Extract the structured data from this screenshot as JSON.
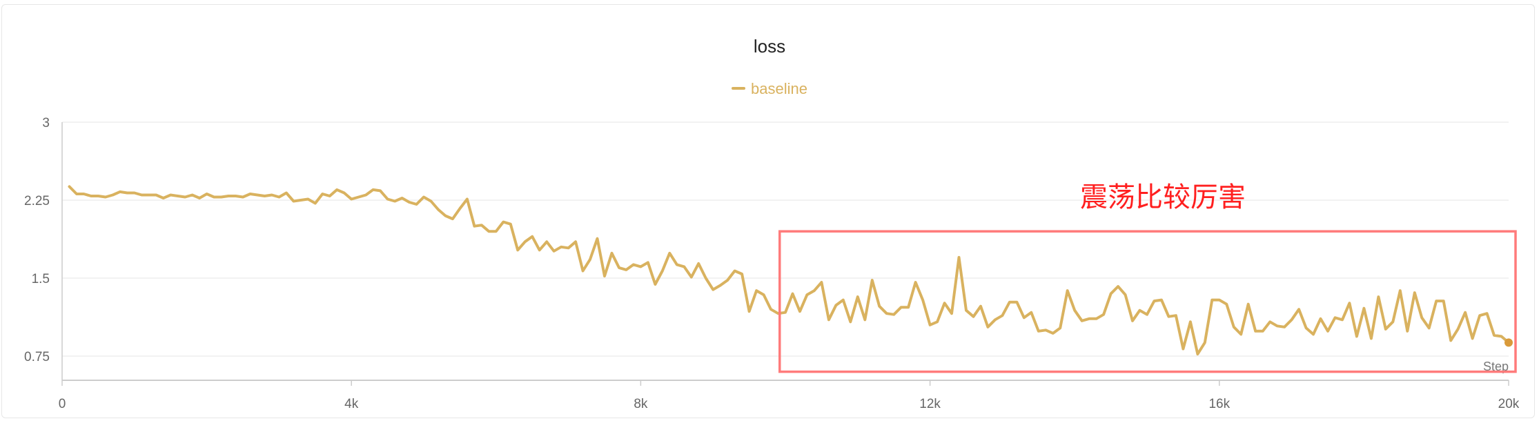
{
  "chart_data": {
    "type": "line",
    "title": "loss",
    "xlabel": "Step",
    "ylabel": "",
    "xlim": [
      0,
      20000
    ],
    "ylim": [
      0.75,
      3
    ],
    "x_ticks": [
      0,
      4000,
      8000,
      12000,
      16000,
      20000
    ],
    "x_tick_labels": [
      "0",
      "4k",
      "8k",
      "12k",
      "16k",
      "20k"
    ],
    "y_ticks": [
      0.75,
      1.5,
      2.25,
      3
    ],
    "y_tick_labels": [
      "0.75",
      "1.5",
      "2.25",
      "3"
    ],
    "grid": true,
    "legend_position": "top-center",
    "series": [
      {
        "name": "baseline",
        "color": "#d9b25f",
        "x": [
          100,
          200,
          300,
          400,
          500,
          600,
          700,
          800,
          900,
          1000,
          1100,
          1200,
          1300,
          1400,
          1500,
          1600,
          1700,
          1800,
          1900,
          2000,
          2100,
          2200,
          2300,
          2400,
          2500,
          2600,
          2700,
          2800,
          2900,
          3000,
          3100,
          3200,
          3300,
          3400,
          3500,
          3600,
          3700,
          3800,
          3900,
          4000,
          4100,
          4200,
          4300,
          4400,
          4500,
          4600,
          4700,
          4800,
          4900,
          5000,
          5100,
          5200,
          5300,
          5400,
          5500,
          5600,
          5700,
          5800,
          5900,
          6000,
          6100,
          6200,
          6300,
          6400,
          6500,
          6600,
          6700,
          6800,
          6900,
          7000,
          7100,
          7200,
          7300,
          7400,
          7500,
          7600,
          7700,
          7800,
          7900,
          8000,
          8100,
          8200,
          8300,
          8400,
          8500,
          8600,
          8700,
          8800,
          8900,
          9000,
          9100,
          9200,
          9300,
          9400,
          9500,
          9600,
          9700,
          9800,
          9900,
          10000,
          10100,
          10200,
          10300,
          10400,
          10500,
          10600,
          10700,
          10800,
          10900,
          11000,
          11100,
          11200,
          11300,
          11400,
          11500,
          11600,
          11700,
          11800,
          11900,
          12000,
          12100,
          12200,
          12300,
          12400,
          12500,
          12600,
          12700,
          12800,
          12900,
          13000,
          13100,
          13200,
          13300,
          13400,
          13500,
          13600,
          13700,
          13800,
          13900,
          14000,
          14100,
          14200,
          14300,
          14400,
          14500,
          14600,
          14700,
          14800,
          14900,
          15000,
          15100,
          15200,
          15300,
          15400,
          15500,
          15600,
          15700,
          15800,
          15900,
          16000,
          16100,
          16200,
          16300,
          16400,
          16500,
          16600,
          16700,
          16800,
          16900,
          17000,
          17100,
          17200,
          17300,
          17400,
          17500,
          17600,
          17700,
          17800,
          17900,
          18000,
          18100,
          18200,
          18300,
          18400,
          18500,
          18600,
          18700,
          18800,
          18900,
          19000,
          19100,
          19200,
          19300,
          19400,
          19500,
          19600,
          19700,
          19800,
          19900,
          20000
        ],
        "values": [
          2.38,
          2.31,
          2.31,
          2.29,
          2.29,
          2.28,
          2.3,
          2.33,
          2.32,
          2.32,
          2.3,
          2.3,
          2.3,
          2.27,
          2.3,
          2.29,
          2.28,
          2.3,
          2.27,
          2.31,
          2.28,
          2.28,
          2.29,
          2.29,
          2.28,
          2.31,
          2.3,
          2.29,
          2.3,
          2.28,
          2.32,
          2.24,
          2.25,
          2.26,
          2.22,
          2.31,
          2.29,
          2.35,
          2.32,
          2.26,
          2.28,
          2.3,
          2.35,
          2.34,
          2.26,
          2.24,
          2.27,
          2.23,
          2.21,
          2.28,
          2.24,
          2.16,
          2.1,
          2.07,
          2.17,
          2.26,
          2.0,
          2.01,
          1.95,
          1.95,
          2.04,
          2.02,
          1.77,
          1.85,
          1.9,
          1.77,
          1.85,
          1.76,
          1.8,
          1.79,
          1.85,
          1.57,
          1.68,
          1.88,
          1.52,
          1.74,
          1.6,
          1.58,
          1.63,
          1.61,
          1.65,
          1.44,
          1.57,
          1.74,
          1.63,
          1.61,
          1.51,
          1.64,
          1.5,
          1.39,
          1.43,
          1.48,
          1.57,
          1.54,
          1.18,
          1.38,
          1.34,
          1.2,
          1.16,
          1.17,
          1.35,
          1.18,
          1.34,
          1.38,
          1.46,
          1.1,
          1.24,
          1.29,
          1.08,
          1.32,
          1.1,
          1.48,
          1.23,
          1.16,
          1.15,
          1.22,
          1.22,
          1.46,
          1.29,
          1.05,
          1.08,
          1.26,
          1.16,
          1.7,
          1.19,
          1.13,
          1.23,
          1.03,
          1.1,
          1.14,
          1.27,
          1.27,
          1.12,
          1.17,
          0.99,
          1.0,
          0.97,
          1.02,
          1.38,
          1.19,
          1.09,
          1.11,
          1.11,
          1.15,
          1.35,
          1.42,
          1.34,
          1.09,
          1.19,
          1.15,
          1.28,
          1.29,
          1.13,
          1.14,
          0.82,
          1.08,
          0.77,
          0.88,
          1.29,
          1.29,
          1.25,
          1.03,
          0.96,
          1.25,
          0.99,
          0.99,
          1.08,
          1.04,
          1.03,
          1.1,
          1.2,
          1.02,
          0.96,
          1.11,
          0.99,
          1.12,
          1.1,
          1.26,
          0.94,
          1.21,
          0.92,
          1.32,
          1.01,
          1.08,
          1.38,
          0.99,
          1.36,
          1.12,
          1.02,
          1.28,
          1.28,
          0.9,
          1.01,
          1.17,
          0.92,
          1.14,
          1.16,
          0.95,
          0.94,
          0.88
        ]
      }
    ],
    "annotation": {
      "text": "震荡比较厉害",
      "color": "#ff1f1f",
      "box": {
        "x_range": [
          9950,
          20000
        ],
        "y_range": [
          0.6,
          1.95
        ],
        "color": "#ff7b7b"
      }
    }
  }
}
